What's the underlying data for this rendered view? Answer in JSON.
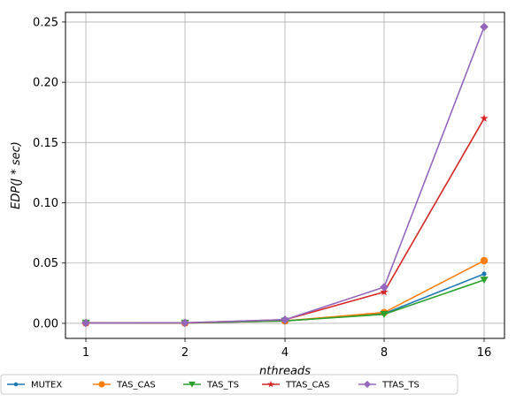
{
  "chart_data": {
    "type": "line",
    "xlabel": "nthreads",
    "ylabel": "EDP(J * sec)",
    "categories": [
      "1",
      "2",
      "4",
      "8",
      "16"
    ],
    "ylim": [
      -0.0125,
      0.258
    ],
    "yticks": [
      0.0,
      0.05,
      0.1,
      0.15,
      0.2,
      0.25
    ],
    "ytick_labels": [
      "0.00",
      "0.05",
      "0.10",
      "0.15",
      "0.20",
      "0.25"
    ],
    "grid": true,
    "legend_position": "bottom (below plot)",
    "series": [
      {
        "name": "MUTEX",
        "color": "#1f77b4",
        "marker": "point",
        "values": [
          0.0003,
          0.0003,
          0.002,
          0.008,
          0.041
        ]
      },
      {
        "name": "TAS_CAS",
        "color": "#ff7f0e",
        "marker": "circle",
        "values": [
          0.0003,
          0.0003,
          0.002,
          0.009,
          0.052
        ]
      },
      {
        "name": "TAS_TS",
        "color": "#2ca02c",
        "marker": "triangle-down",
        "values": [
          0.0003,
          0.0003,
          0.002,
          0.0075,
          0.036
        ]
      },
      {
        "name": "TTAS_CAS",
        "color": "#d62728",
        "marker": "star",
        "values": [
          0.0003,
          0.0004,
          0.003,
          0.026,
          0.17
        ]
      },
      {
        "name": "TTAS_TS",
        "color": "#9467bd",
        "marker": "diamond",
        "values": [
          0.0003,
          0.0005,
          0.003,
          0.03,
          0.246
        ]
      }
    ]
  }
}
